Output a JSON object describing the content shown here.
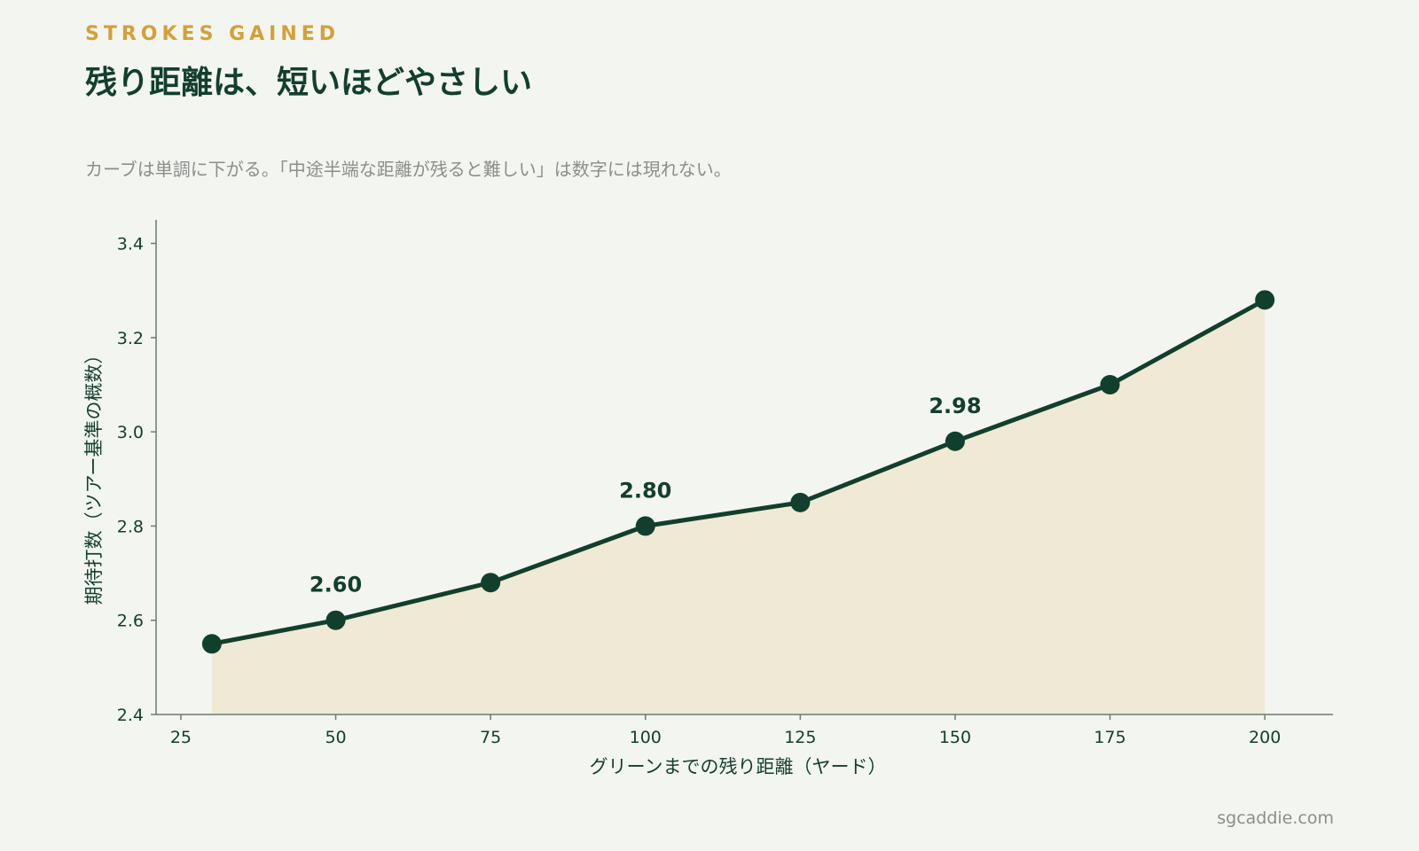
{
  "header": {
    "kicker": "STROKES GAINED",
    "title": "残り距離は、短いほどやさしい",
    "subtitle": "カーブは単調に下がる。「中途半端な距離が残ると難しい」は数字には現れない。"
  },
  "footer": {
    "source": "sgcaddie.com"
  },
  "colors": {
    "background": "#f3f5f1",
    "line": "#123f2d",
    "fill": "#efe9d6",
    "kicker": "#d4a037",
    "axis": "#6b7a72",
    "muted": "#8a8f8a"
  },
  "chart_data": {
    "type": "line",
    "title": "残り距離は、短いほどやさしい",
    "xlabel": "グリーンまでの残り距離（ヤード）",
    "ylabel": "期待打数（ツアー基準の概数）",
    "xlim": [
      21,
      211
    ],
    "ylim": [
      2.4,
      3.45
    ],
    "xticks": [
      25,
      50,
      75,
      100,
      125,
      150,
      175,
      200
    ],
    "yticks": [
      2.4,
      2.6,
      2.8,
      3.0,
      3.2,
      3.4
    ],
    "ytick_labels": [
      "2.4",
      "2.6",
      "2.8",
      "3.0",
      "3.2",
      "3.4"
    ],
    "grid": false,
    "area_fill": true,
    "series": [
      {
        "x": [
          30,
          50,
          75,
          100,
          125,
          150,
          175,
          200
        ],
        "values": [
          2.55,
          2.6,
          2.68,
          2.8,
          2.85,
          2.98,
          3.1,
          3.28
        ]
      }
    ],
    "data_labels": [
      {
        "x": 50,
        "y": 2.6,
        "text": "2.60"
      },
      {
        "x": 100,
        "y": 2.8,
        "text": "2.80"
      },
      {
        "x": 150,
        "y": 2.98,
        "text": "2.98"
      }
    ]
  }
}
